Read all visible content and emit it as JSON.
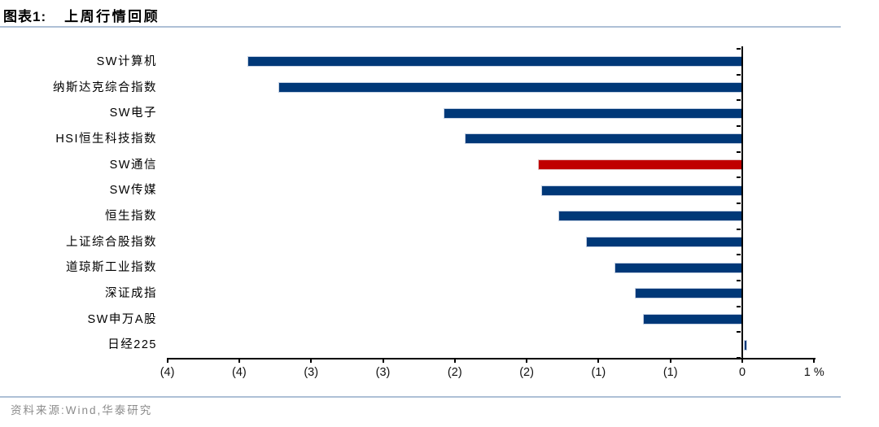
{
  "header": {
    "figure_label": "图表1:",
    "title": "上周行情回顾"
  },
  "footer": {
    "source": "资料来源:Wind,华泰研究"
  },
  "colors": {
    "bar_blue": "#003878",
    "bar_red": "#c00000",
    "axis_black": "#000000",
    "rule_blue": "#aec0d6",
    "source_gray": "#8c8c8c"
  },
  "chart_data": {
    "type": "bar",
    "orientation": "horizontal",
    "title": "上周行情回顾",
    "unit": "%",
    "categories": [
      "SW计算机",
      "纳斯达克综合指数",
      "SW电子",
      "HSI恒生科技指数",
      "SW通信",
      "SW传媒",
      "恒生指数",
      "上证综合股指数",
      "道琼斯工业指数",
      "深证成指",
      "SW申万A股",
      "日经225"
    ],
    "values": [
      -3.44,
      -3.23,
      -2.08,
      -1.93,
      -1.42,
      -1.4,
      -1.28,
      -1.09,
      -0.89,
      -0.75,
      -0.69,
      0.02
    ],
    "highlight_index": 4,
    "highlight_category": "SW通信",
    "xlim": [
      -4,
      0.5
    ],
    "x_tick_values": [
      -4,
      -3.5,
      -3,
      -2.5,
      -2,
      -1.5,
      -1,
      -0.5,
      0,
      0.5
    ],
    "x_tick_labels": [
      "(4)",
      "(4)",
      "(3)",
      "(3)",
      "(2)",
      "(2)",
      "(1)",
      "(1)",
      "0",
      "1 %"
    ],
    "grid": false,
    "legend": false
  }
}
